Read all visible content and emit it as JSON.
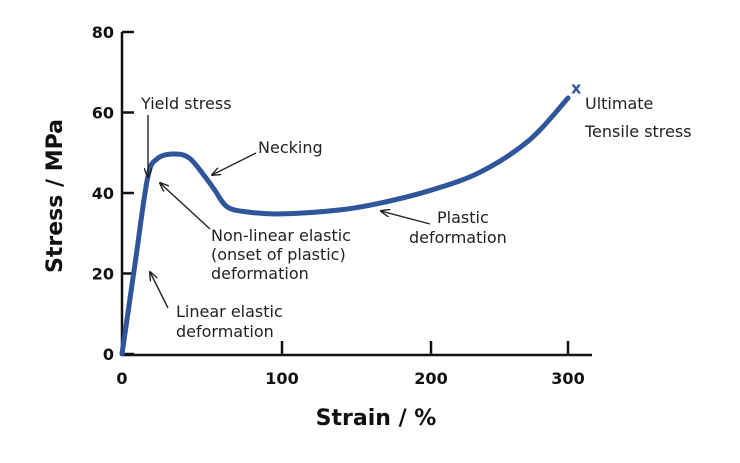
{
  "chart_data": {
    "type": "line",
    "title": "",
    "xlabel": "Strain / %",
    "ylabel": "Stress / MPa",
    "xlim": [
      0,
      310
    ],
    "ylim": [
      0,
      80
    ],
    "x_ticks": [
      "0",
      "100",
      "200",
      "300"
    ],
    "y_ticks": [
      "0",
      "20",
      "40",
      "60",
      "80"
    ],
    "grid": false,
    "line_color": "#2f559b",
    "series": [
      {
        "x": [
          0,
          8,
          16,
          22,
          32,
          42,
          52,
          58,
          66,
          80,
          100,
          139,
          166,
          200,
          236,
          272,
          300
        ],
        "y": [
          0,
          22,
          43.7,
          48.5,
          49.7,
          48.7,
          44,
          40.7,
          36.5,
          35.2,
          34.8,
          35.8,
          37.5,
          40.7,
          45.2,
          53.2,
          63.6
        ]
      }
    ],
    "marker": {
      "symbol": "x",
      "x": 306,
      "y": 66
    },
    "annotations": {
      "yield": "Yield stress",
      "necking": "Necking",
      "nonlinear_1": "Non-linear elastic",
      "nonlinear_2": "(onset of plastic)",
      "nonlinear_3": "deformation",
      "linear_1": "Linear elastic",
      "linear_2": "deformation",
      "plastic_1": "Plastic",
      "plastic_2": "deformation",
      "uts_1": "Ultimate",
      "uts_2": "Tensile stress"
    }
  }
}
